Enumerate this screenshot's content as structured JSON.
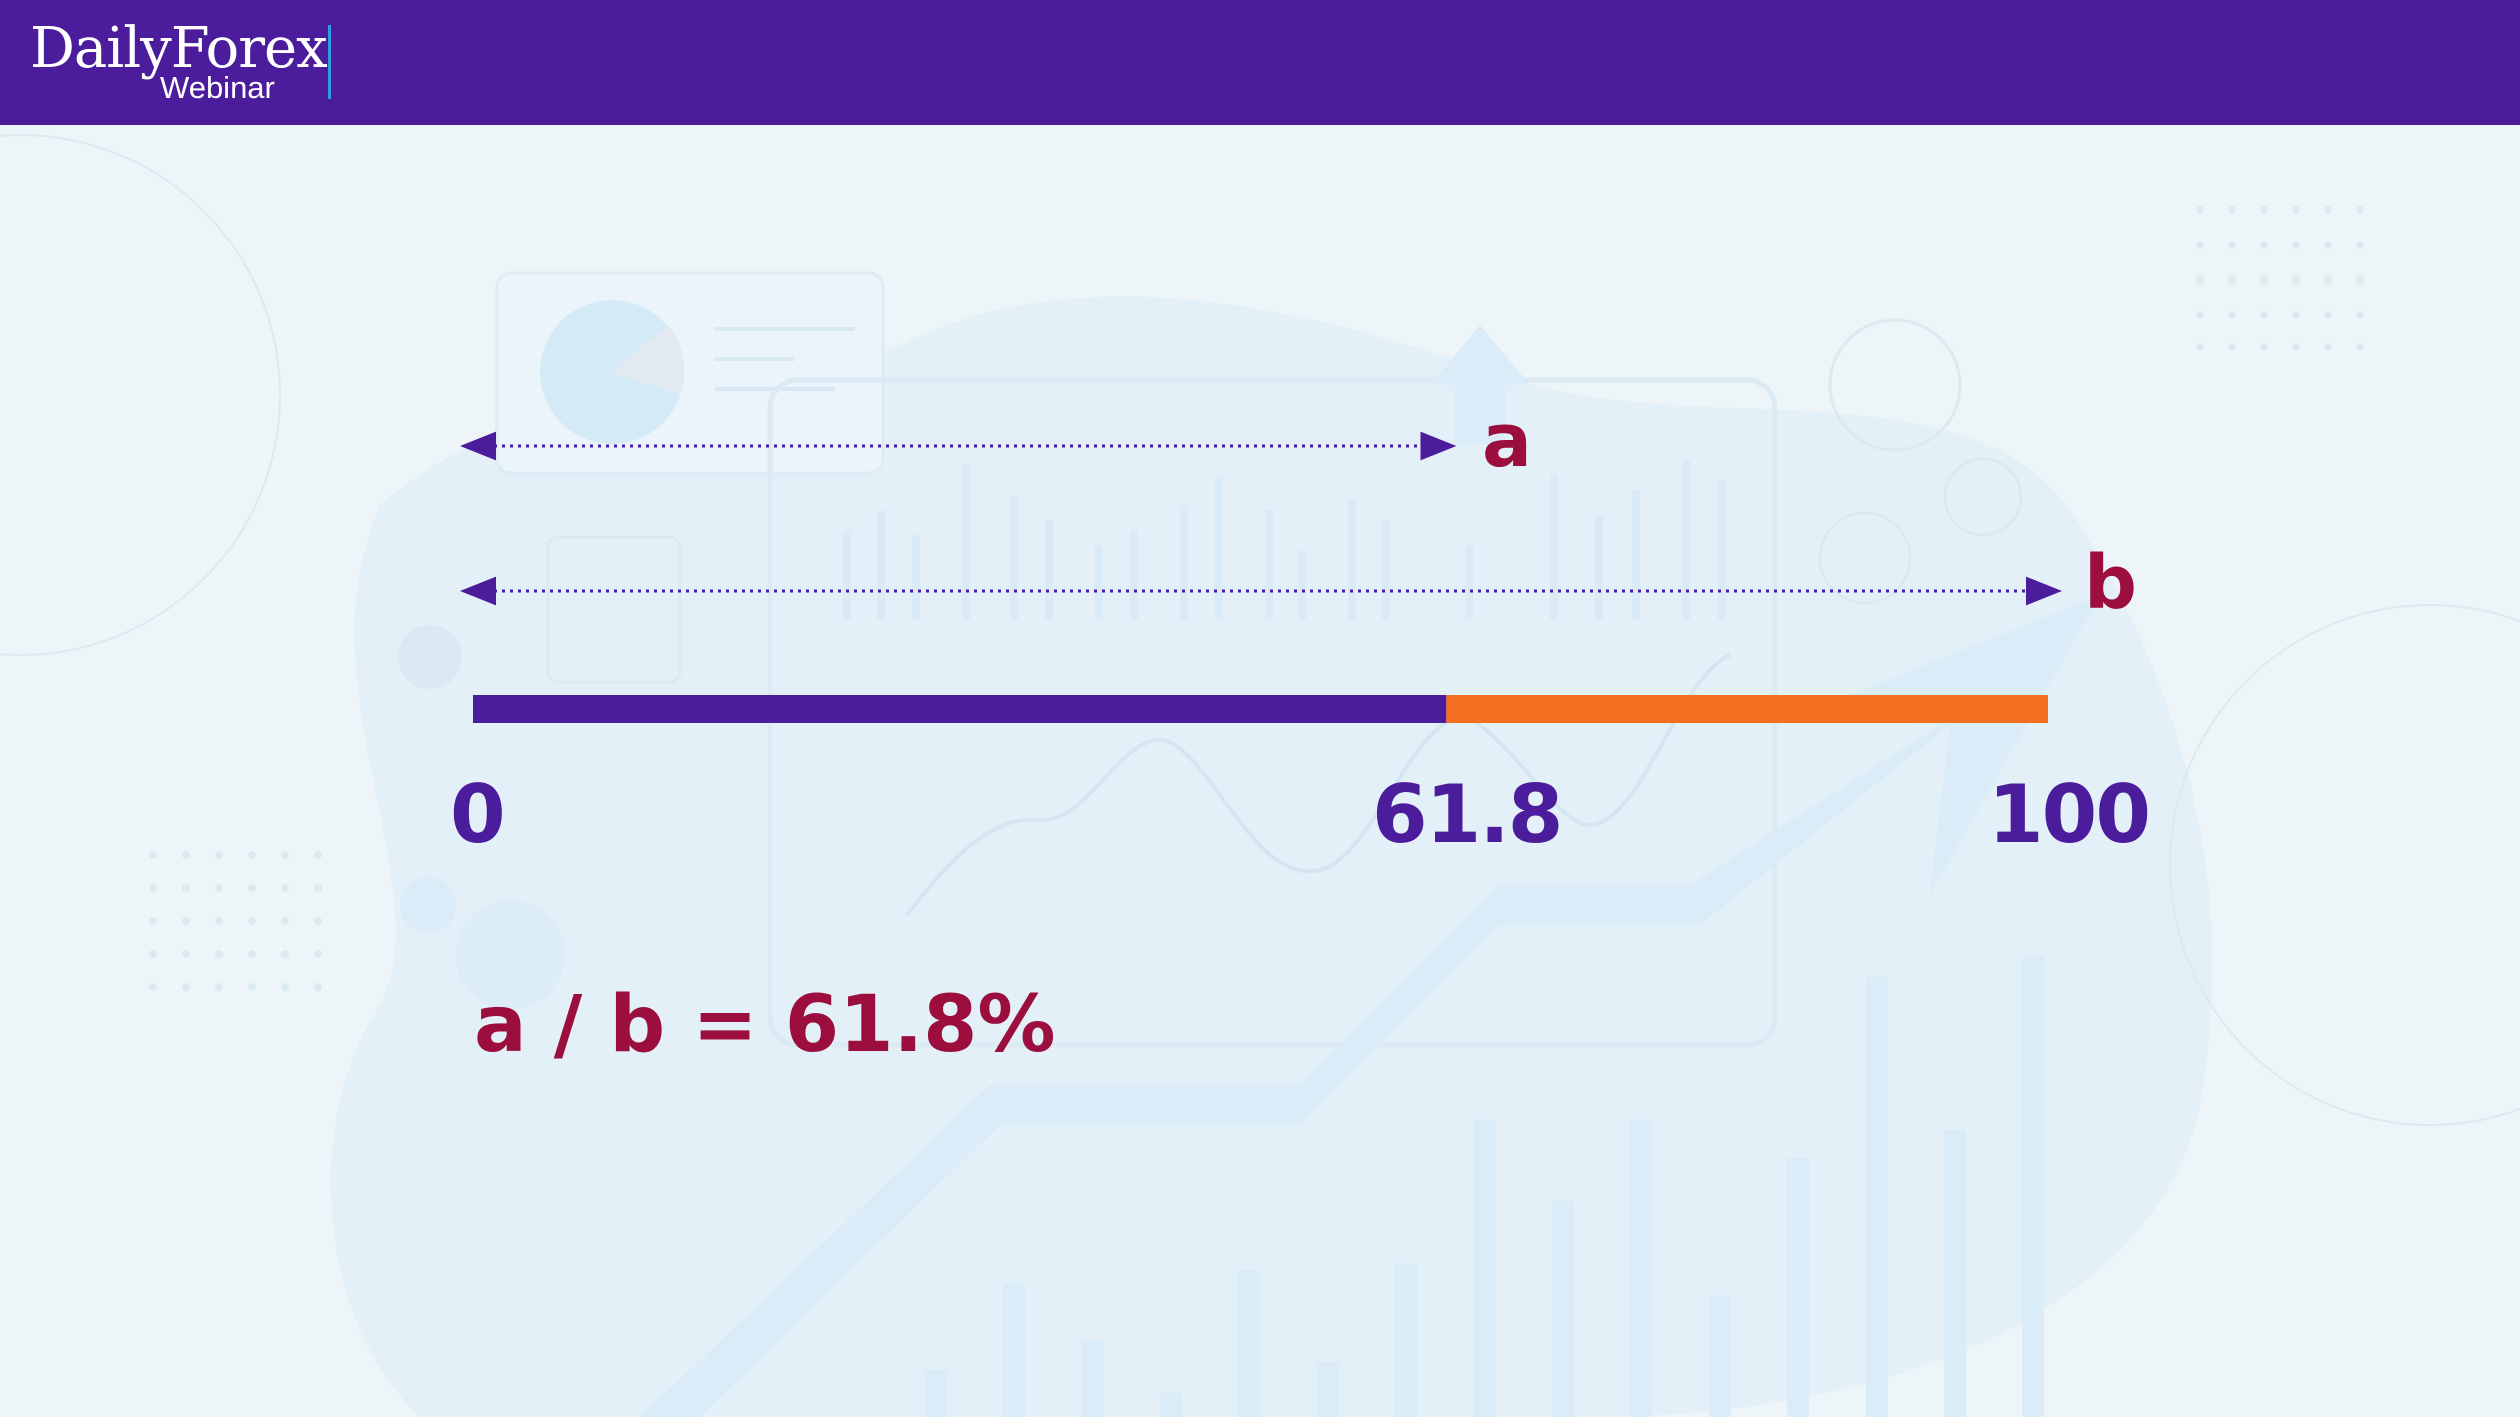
{
  "brand": {
    "name": "DailyForex",
    "sub": "Webinar"
  },
  "diagram": {
    "scale_ticks": [
      "0",
      "61.8",
      "100"
    ],
    "bar": {
      "ratio": 0.618,
      "color_a": "#4b1c9b",
      "color_b": "#f37021"
    },
    "segment_a_label": "a",
    "segment_b_label": "b",
    "formula": "a / b = 61.8%"
  },
  "colors": {
    "header": "#4b1c9b",
    "accent_red": "#9b0e3e",
    "purple": "#4b1c9b",
    "orange": "#f37021",
    "background": "#eef5f9"
  }
}
